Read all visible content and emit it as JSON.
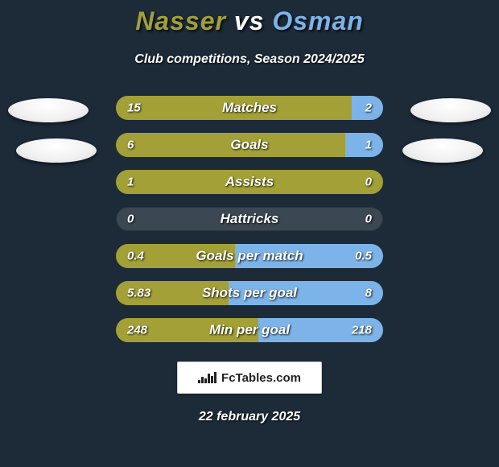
{
  "background_color": "#1d2a38",
  "title": {
    "left": "Nasser",
    "vs": "vs",
    "right": "Osman",
    "left_color": "#a2a036",
    "right_color": "#7cb3e8"
  },
  "subtitle": "Club competitions, Season 2024/2025",
  "left_color": "#a2a036",
  "right_color": "#7cb3e8",
  "neutral_color": "#3b4752",
  "row_width": 332,
  "rows": [
    {
      "label": "Matches",
      "left": "15",
      "right": "2",
      "lv": 15,
      "rv": 2
    },
    {
      "label": "Goals",
      "left": "6",
      "right": "1",
      "lv": 6,
      "rv": 1
    },
    {
      "label": "Assists",
      "left": "1",
      "right": "0",
      "lv": 1,
      "rv": 0
    },
    {
      "label": "Hattricks",
      "left": "0",
      "right": "0",
      "lv": 0,
      "rv": 0
    },
    {
      "label": "Goals per match",
      "left": "0.4",
      "right": "0.5",
      "lv": 0.4,
      "rv": 0.5
    },
    {
      "label": "Shots per goal",
      "left": "5.83",
      "right": "8",
      "lv": 5.83,
      "rv": 8
    },
    {
      "label": "Min per goal",
      "left": "248",
      "right": "218",
      "lv": 248,
      "rv": 218
    }
  ],
  "logo_text": "FcTables.com",
  "date": "22 february 2025"
}
